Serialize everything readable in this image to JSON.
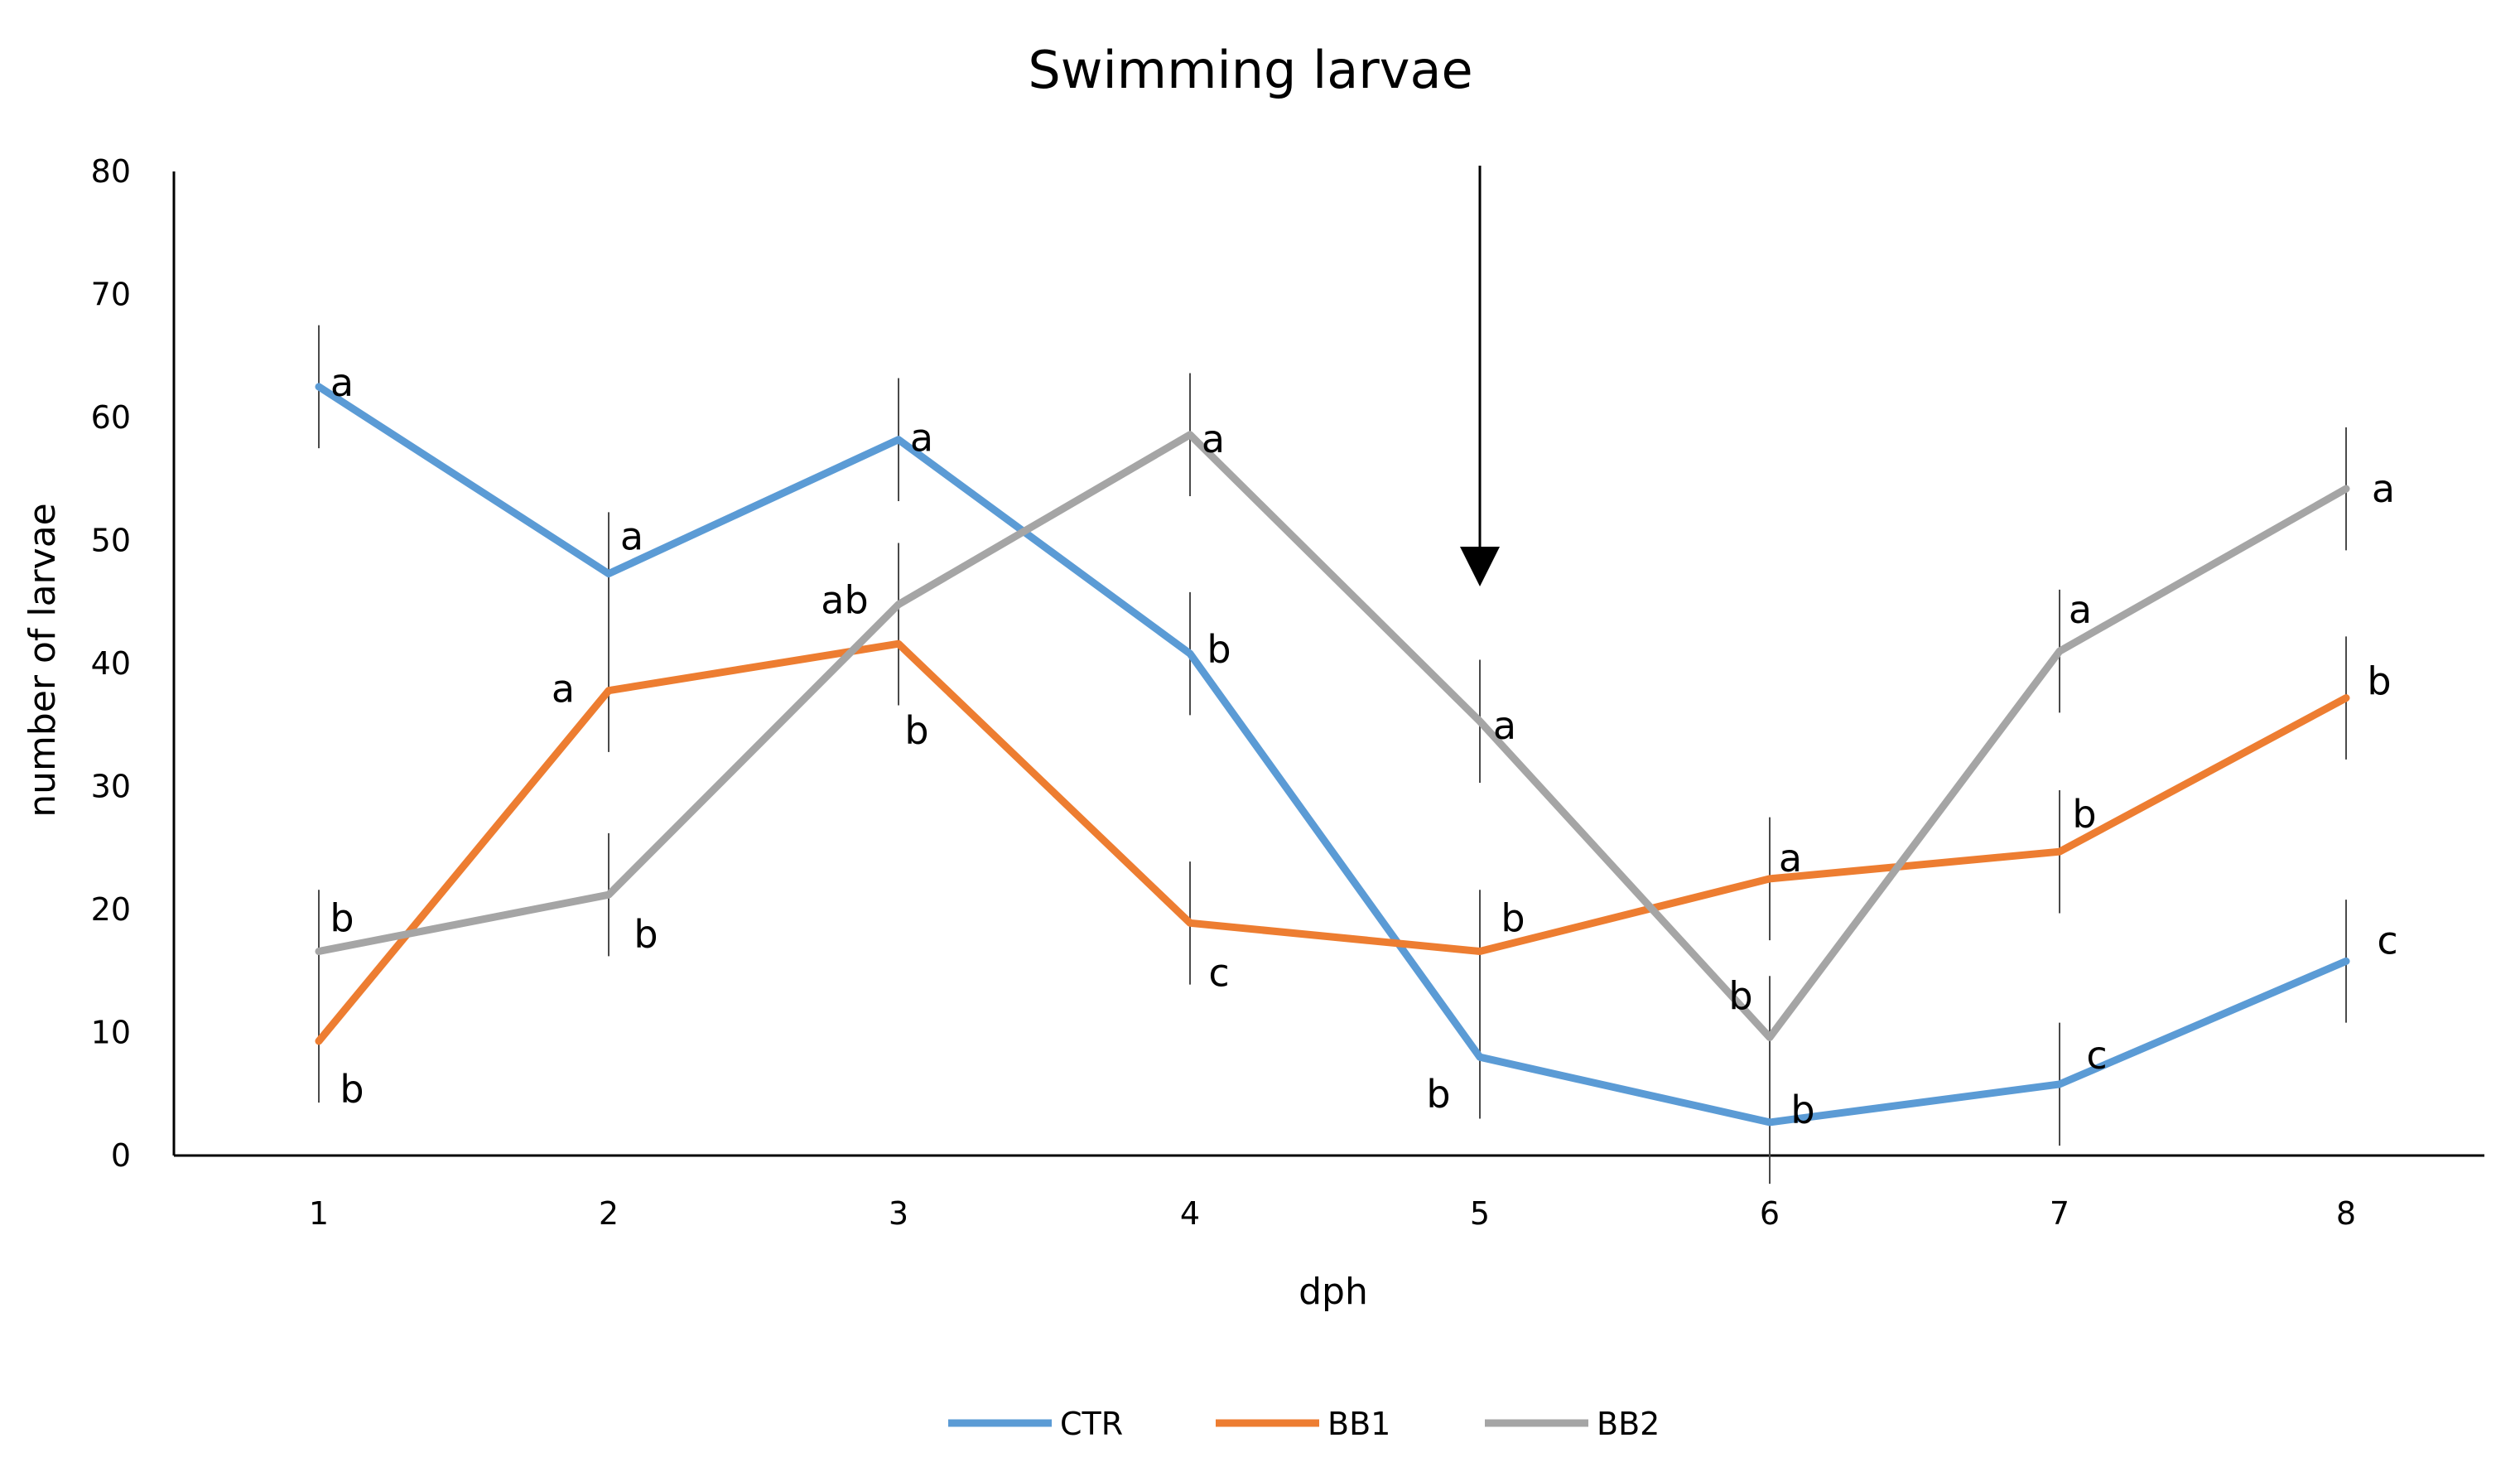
{
  "chart_data": {
    "type": "line",
    "title": "Swimming larvae",
    "xlabel": "dph",
    "ylabel": "number of larvae",
    "categories": [
      "1",
      "2",
      "3",
      "4",
      "5",
      "6",
      "7",
      "8"
    ],
    "ylim": [
      0,
      80
    ],
    "yticks": [
      "0",
      "10",
      "20",
      "30",
      "40",
      "50",
      "60",
      "70",
      "80"
    ],
    "grid": false,
    "legend_position": "bottom",
    "arrow_at_category": "5",
    "series": [
      {
        "name": "CTR",
        "color": "#5B9BD5",
        "values": [
          62.5,
          47.3,
          58.2,
          40.8,
          8.0,
          2.7,
          5.8,
          15.8
        ],
        "error": [
          5.0,
          5.0,
          5.0,
          5.0,
          5.0,
          5.0,
          5.0,
          5.0
        ],
        "letters": [
          "a",
          "a",
          "a",
          "b",
          "b",
          "b",
          "c",
          "c"
        ]
      },
      {
        "name": "BB1",
        "color": "#ED7D31",
        "values": [
          9.3,
          37.8,
          41.6,
          18.9,
          16.6,
          22.5,
          24.7,
          37.2
        ],
        "error": [
          5.0,
          5.0,
          5.0,
          5.0,
          5.0,
          5.0,
          5.0,
          5.0
        ],
        "letters": [
          "b",
          "a",
          "b",
          "c",
          "b",
          "a",
          "b",
          "b"
        ]
      },
      {
        "name": "BB2",
        "color": "#A5A5A5",
        "values": [
          16.6,
          21.2,
          44.8,
          58.6,
          35.3,
          9.6,
          41.0,
          54.2
        ],
        "error": [
          5.0,
          5.0,
          5.0,
          5.0,
          5.0,
          5.0,
          5.0,
          5.0
        ],
        "letters": [
          "b",
          "b",
          "ab",
          "a",
          "a",
          "b",
          "a",
          "a"
        ]
      }
    ]
  }
}
